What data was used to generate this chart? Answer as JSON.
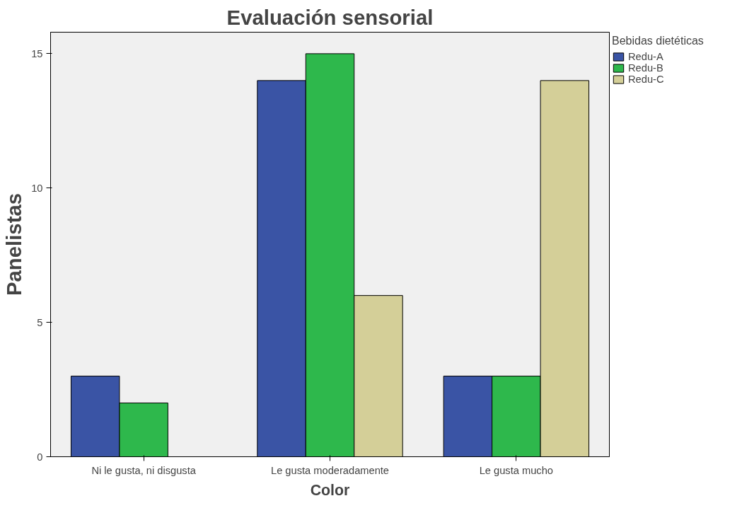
{
  "chart_data": {
    "type": "bar",
    "title": "Evaluación sensorial",
    "xlabel": "Color",
    "ylabel": "Panelistas",
    "legend_title": "Bebidas dietéticas",
    "categories": [
      "Ni le gusta, ni disgusta",
      "Le gusta moderadamente",
      "Le gusta mucho"
    ],
    "series": [
      {
        "name": "Redu-A",
        "color": "#3a54a5",
        "values": [
          3,
          14,
          3
        ]
      },
      {
        "name": "Redu-B",
        "color": "#2eb84c",
        "values": [
          2,
          15,
          3
        ]
      },
      {
        "name": "Redu-C",
        "color": "#d4cf98",
        "values": [
          null,
          6,
          14
        ]
      }
    ],
    "ylim": [
      0,
      15.8
    ],
    "yticks": [
      0,
      5,
      10,
      15
    ],
    "grid": false,
    "legend": "top right"
  }
}
